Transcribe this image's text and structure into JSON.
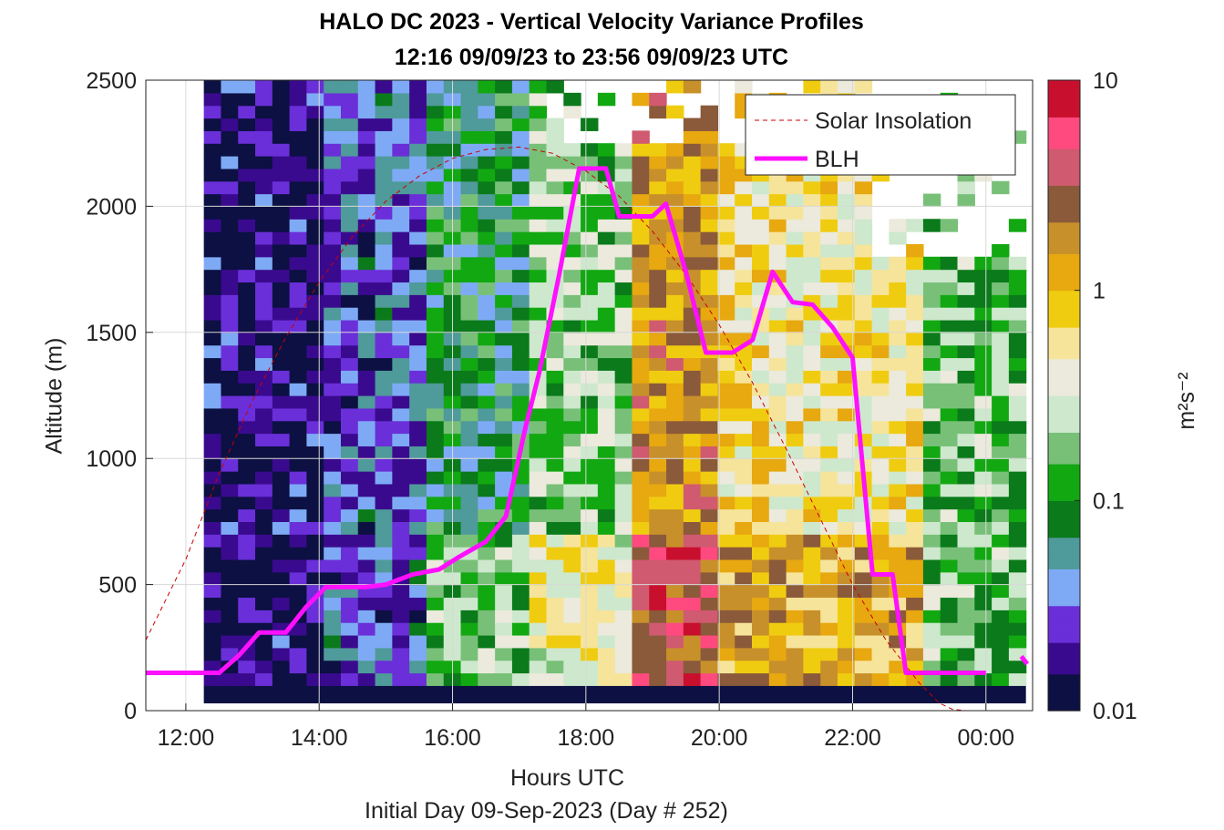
{
  "figure": {
    "title_line1": "HALO DC 2023 - Vertical Velocity Variance Profiles",
    "title_line2": "12:16 09/09/23 to 23:56 09/09/23  UTC",
    "footer": "Initial Day 09-Sep-2023 (Day # 252)"
  },
  "chart_data": {
    "type": "heatmap",
    "title": "HALO DC 2023 - Vertical Velocity Variance Profiles",
    "subtitle": "12:16 09/09/23 to 23:56 09/09/23  UTC",
    "xlabel": "Hours UTC",
    "ylabel": "Altitude (m)",
    "xlim": [
      11.4,
      24.7
    ],
    "ylim": [
      0,
      2500
    ],
    "xticks": [
      12,
      14,
      16,
      18,
      20,
      22,
      24
    ],
    "xtick_labels": [
      "12:00",
      "14:00",
      "16:00",
      "18:00",
      "20:00",
      "22:00",
      "00:00"
    ],
    "yticks": [
      0,
      500,
      1000,
      1500,
      2000,
      2500
    ],
    "ytick_labels": [
      "0",
      "500",
      "1000",
      "1500",
      "2000",
      "2500"
    ],
    "grid": true,
    "colorbar": {
      "label": "m²s⁻²",
      "scale": "log",
      "range": [
        0.01,
        10
      ],
      "tick_labels": [
        "0.01",
        "0.1",
        "1",
        "10"
      ],
      "colors": [
        "#0c1042",
        "#3a0a8e",
        "#6a2fd8",
        "#7eaaf5",
        "#4f9a9a",
        "#0a7a1a",
        "#12a812",
        "#78c078",
        "#cde8cd",
        "#ebeadc",
        "#f6e49a",
        "#f0cc10",
        "#e7a810",
        "#c8902a",
        "#8a5a3a",
        "#d05a70",
        "#ff4a80",
        "#c8102e"
      ]
    },
    "heatmap_region": {
      "x_range": [
        12.27,
        24.6
      ],
      "y_range": [
        100,
        2500
      ]
    },
    "approx_log10_variance_by_time_band": [
      {
        "x_range": [
          12.27,
          14.0
        ],
        "log10_value": -1.8
      },
      {
        "x_range": [
          14.0,
          15.5
        ],
        "log10_value": -1.5
      },
      {
        "x_range": [
          15.5,
          17.2
        ],
        "log10_value": -1.1
      },
      {
        "x_range": [
          17.2,
          18.6
        ],
        "log10_value": -0.7
      },
      {
        "x_range": [
          18.6,
          20.0
        ],
        "log10_value": 0.2
      },
      {
        "x_range": [
          20.0,
          21.0
        ],
        "log10_value": -0.2
      },
      {
        "x_range": [
          21.0,
          23.0
        ],
        "log10_value": -0.3
      },
      {
        "x_range": [
          23.0,
          24.6
        ],
        "log10_value": -0.8
      }
    ],
    "series": [
      {
        "name": "Solar Insolation",
        "style": "dashed",
        "color": "#cc0000",
        "x": [
          11.4,
          12.0,
          12.5,
          13.0,
          13.5,
          14.0,
          14.5,
          15.0,
          15.5,
          16.0,
          16.5,
          17.0,
          17.5,
          18.0,
          18.5,
          19.0,
          19.5,
          20.0,
          20.5,
          21.0,
          21.5,
          22.0,
          22.5,
          23.0,
          23.3,
          23.5,
          23.7,
          23.9,
          24.6
        ],
        "y": [
          280,
          600,
          940,
          1230,
          1480,
          1700,
          1880,
          2020,
          2120,
          2190,
          2225,
          2235,
          2210,
          2140,
          2040,
          1900,
          1730,
          1530,
          1300,
          1040,
          770,
          500,
          280,
          110,
          30,
          5,
          0,
          0,
          0
        ]
      },
      {
        "name": "BLH",
        "style": "solid",
        "color": "#ff10ff",
        "x": [
          11.4,
          12.1,
          12.5,
          12.8,
          13.1,
          13.3,
          13.5,
          13.8,
          14.1,
          14.4,
          14.7,
          15.0,
          15.4,
          15.8,
          16.1,
          16.5,
          16.8,
          17.1,
          17.3,
          17.6,
          17.9,
          18.1,
          18.3,
          18.5,
          18.7,
          19.0,
          19.2,
          19.5,
          19.8,
          20.0,
          20.2,
          20.5,
          20.8,
          21.1,
          21.4,
          21.7,
          22.0,
          22.3,
          22.6,
          22.8,
          23.1,
          23.4,
          23.6,
          23.9,
          24.0
        ],
        "y": [
          150,
          150,
          150,
          220,
          310,
          310,
          310,
          410,
          490,
          490,
          490,
          500,
          540,
          560,
          610,
          670,
          770,
          1130,
          1340,
          1730,
          2150,
          2150,
          2150,
          1960,
          1960,
          1960,
          2010,
          1740,
          1420,
          1420,
          1420,
          1470,
          1740,
          1620,
          1610,
          1520,
          1400,
          540,
          540,
          150,
          150,
          150,
          150,
          150,
          150
        ]
      }
    ],
    "extra_segment": {
      "name": "BLH",
      "x": [
        24.53,
        24.62
      ],
      "y": [
        215,
        185
      ]
    },
    "legend": {
      "placement": "top-right",
      "entries": [
        "Solar Insolation",
        "BLH"
      ]
    }
  }
}
